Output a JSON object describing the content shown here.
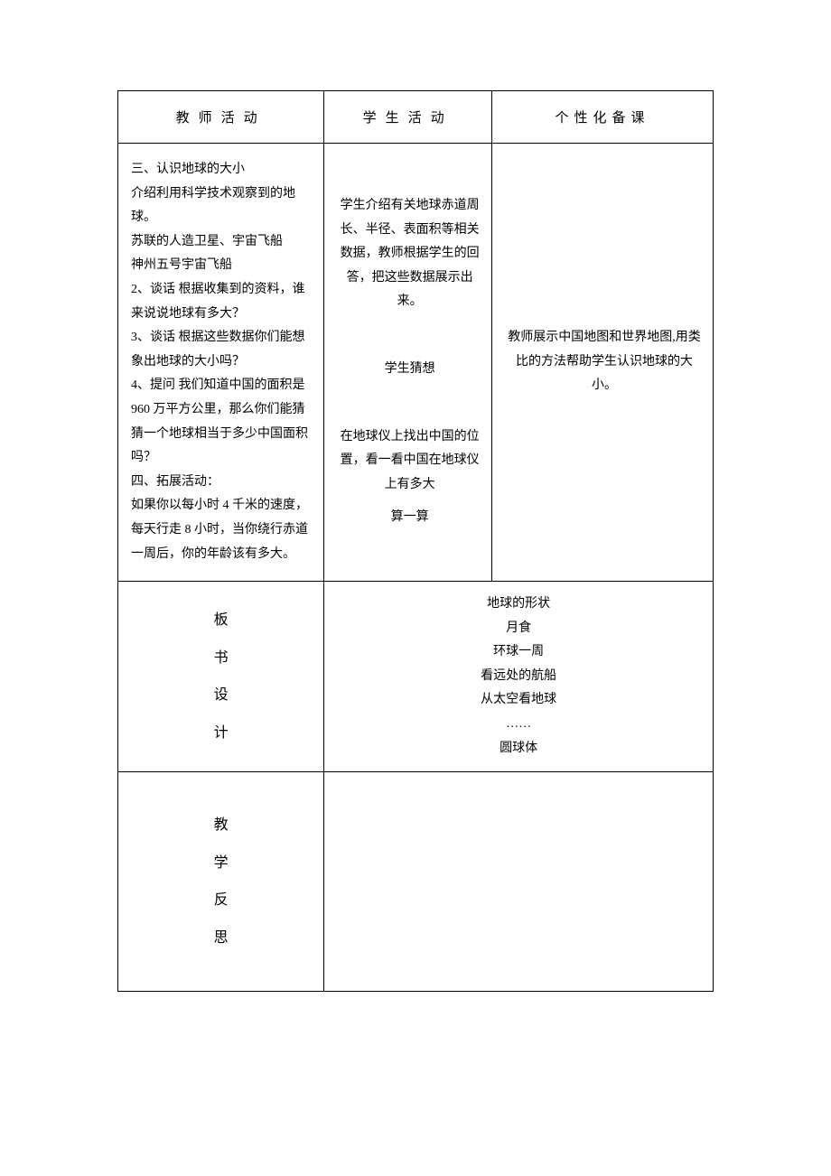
{
  "headers": {
    "teacher": "教师活动",
    "student": "学生活动",
    "notes": "个性化备课"
  },
  "teacher_activity": {
    "s1": "三、认识地球的大小",
    "s2": "介绍利用科学技术观察到的地球。",
    "s3": "苏联的人造卫星、宇宙飞船",
    "s4": "神州五号宇宙飞船",
    "s5": "2、谈话 根据收集到的资料，谁来说说地球有多大？",
    "s6": "3、谈话 根据这些数据你们能想象出地球的大小吗？",
    "s7": "4、提问 我们知道中国的面积是 960 万平方公里，那么你们能猜猜一个地球相当于多少中国面积吗？",
    "s8": "四、拓展活动：",
    "s9": "如果你以每小时 4 千米的速度，每天行走 8 小时，当你绕行赤道一周后，你的年龄该有多大。"
  },
  "student_activity": {
    "s1": "学生介绍有关地球赤道周长、半径、表面积等相关数据，教师根据学生的回答，把这些数据展示出来。",
    "s2": "学生猜想",
    "s3": "在地球仪上找出中国的位置，看一看中国在地球仪上有多大",
    "s4": "算一算"
  },
  "notes": {
    "n1": "教师展示中国地图和世界地图,用类比的方法帮助学生认识地球的大小。"
  },
  "labels": {
    "board_design": {
      "c1": "板",
      "c2": "书",
      "c3": "设",
      "c4": "计"
    },
    "reflection": {
      "c1": "教",
      "c2": "学",
      "c3": "反",
      "c4": "思"
    }
  },
  "board_design": {
    "l1": "地球的形状",
    "l2": "月食",
    "l3": "环球一周",
    "l4": "看远处的航船",
    "l5": "从太空看地球",
    "l6": "……",
    "l7": "圆球体"
  },
  "styles": {
    "font_family": "SimSun",
    "border_color": "#000000",
    "background_color": "#ffffff",
    "text_color": "#000000",
    "base_font_size": 14,
    "header_letter_spacing": 10
  }
}
